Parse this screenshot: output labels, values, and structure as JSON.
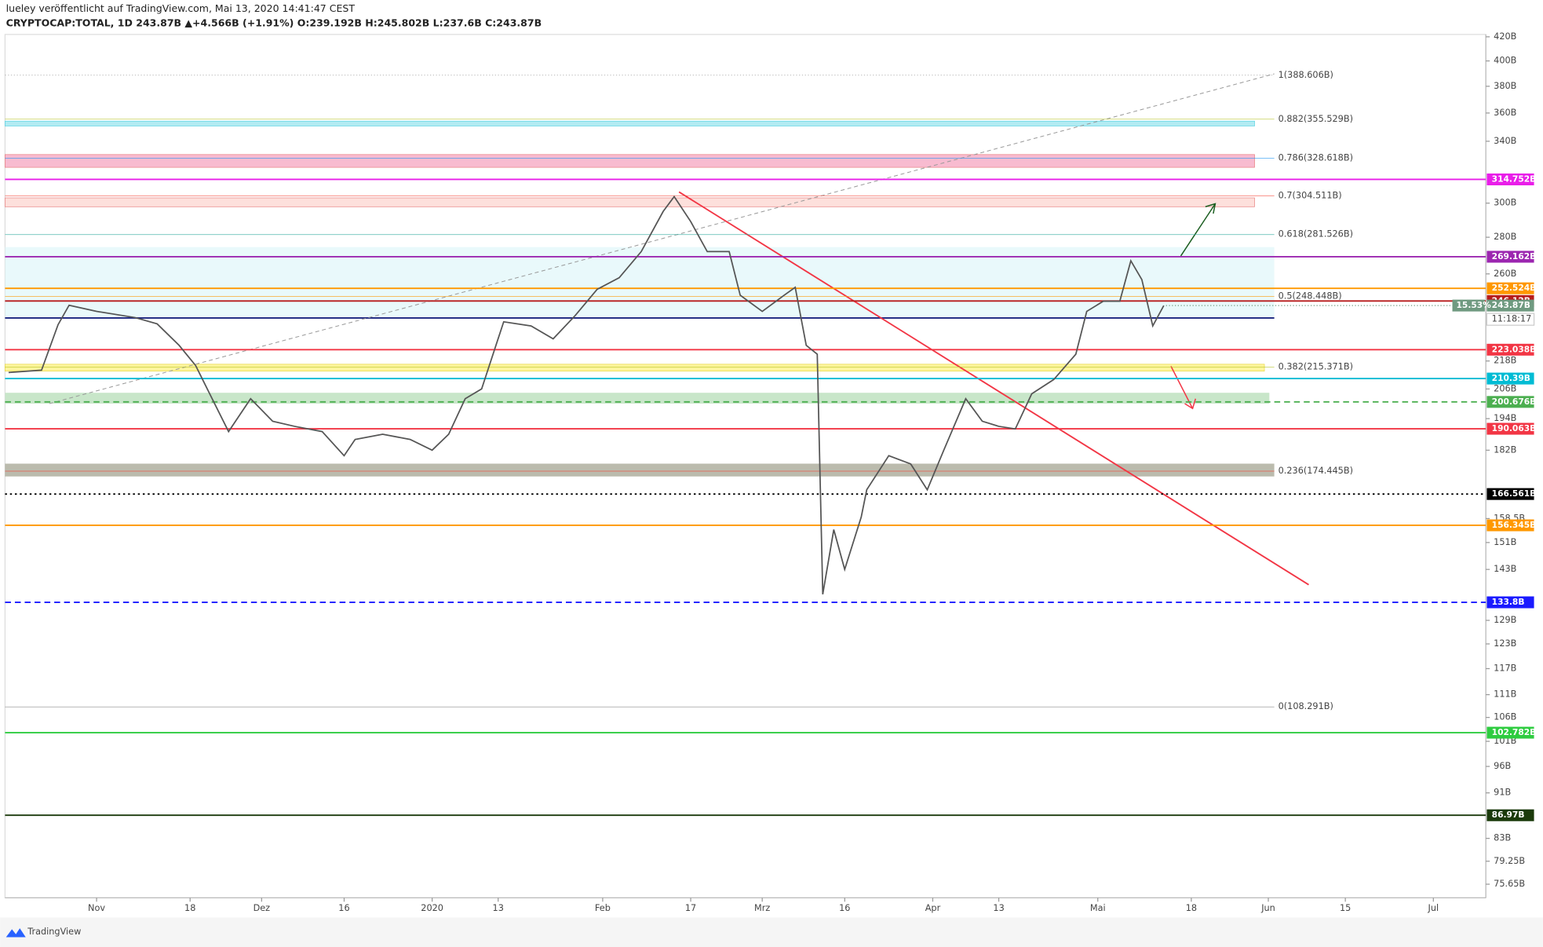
{
  "header": {
    "author_line": "lueley veröffentlicht auf TradingView.com, Mai 13, 2020 14:41:47 CEST",
    "symbol_line": "CRYPTOCAP:TOTAL, 1D 243.87B ▲+4.566B (+1.91%) O:239.192B H:245.802B L:237.6B C:243.87B"
  },
  "footer": {
    "brand": "TradingView"
  },
  "chart_data": {
    "type": "line",
    "log_scale": true,
    "color": "#555555",
    "x": [
      "2019-10-16",
      "2019-10-22",
      "2019-10-25",
      "2019-10-27",
      "2019-11-01",
      "2019-11-08",
      "2019-11-12",
      "2019-11-16",
      "2019-11-19",
      "2019-11-22",
      "2019-11-25",
      "2019-11-29",
      "2019-12-03",
      "2019-12-07",
      "2019-12-12",
      "2019-12-16",
      "2019-12-18",
      "2019-12-23",
      "2019-12-28",
      "2020-01-01",
      "2020-01-04",
      "2020-01-07",
      "2020-01-10",
      "2020-01-14",
      "2020-01-19",
      "2020-01-23",
      "2020-01-27",
      "2020-01-31",
      "2020-02-04",
      "2020-02-08",
      "2020-02-12",
      "2020-02-14",
      "2020-02-17",
      "2020-02-20",
      "2020-02-24",
      "2020-02-26",
      "2020-03-01",
      "2020-03-05",
      "2020-03-07",
      "2020-03-09",
      "2020-03-11",
      "2020-03-12",
      "2020-03-14",
      "2020-03-16",
      "2020-03-19",
      "2020-03-20",
      "2020-03-24",
      "2020-03-28",
      "2020-03-31",
      "2020-04-03",
      "2020-04-07",
      "2020-04-10",
      "2020-04-13",
      "2020-04-16",
      "2020-04-19",
      "2020-04-23",
      "2020-04-27",
      "2020-04-29",
      "2020-05-02",
      "2020-05-05",
      "2020-05-07",
      "2020-05-09",
      "2020-05-11",
      "2020-05-13"
    ],
    "values": [
      213,
      214,
      234.6,
      244,
      241,
      238,
      235,
      225,
      216,
      202,
      189,
      202,
      193,
      191,
      189,
      180,
      186,
      188,
      186,
      182,
      188,
      202,
      206,
      236,
      234,
      228,
      239,
      252,
      258,
      272,
      295,
      304,
      289,
      272,
      272,
      249,
      241,
      249,
      253,
      225,
      221,
      136,
      155,
      143,
      159,
      168,
      180,
      177,
      168,
      182,
      202,
      193,
      191,
      190,
      204,
      210,
      221,
      241,
      246,
      246,
      267,
      257,
      234,
      243.87
    ],
    "xlim": [
      "2019-10-15",
      "2020-07-10"
    ],
    "xticks": [
      {
        "value": "2019-11-01",
        "label": "Nov"
      },
      {
        "value": "2019-11-18",
        "label": "18"
      },
      {
        "value": "2019-12-01",
        "label": "Dez"
      },
      {
        "value": "2019-12-16",
        "label": "16"
      },
      {
        "value": "2020-01-01",
        "label": "2020"
      },
      {
        "value": "2020-01-13",
        "label": "13"
      },
      {
        "value": "2020-02-01",
        "label": "Feb"
      },
      {
        "value": "2020-02-17",
        "label": "17"
      },
      {
        "value": "2020-03-01",
        "label": "Mrz"
      },
      {
        "value": "2020-03-16",
        "label": "16"
      },
      {
        "value": "2020-04-01",
        "label": "Apr"
      },
      {
        "value": "2020-04-13",
        "label": "13"
      },
      {
        "value": "2020-05-01",
        "label": "Mai"
      },
      {
        "value": "2020-05-18",
        "label": "18"
      },
      {
        "value": "2020-06-01",
        "label": "Jun"
      },
      {
        "value": "2020-06-15",
        "label": "15"
      },
      {
        "value": "2020-07-01",
        "label": "Jul"
      }
    ],
    "ylim": [
      73.6,
      422
    ],
    "yticks": [
      {
        "value": 420,
        "label": "420B"
      },
      {
        "value": 400,
        "label": "400B"
      },
      {
        "value": 380,
        "label": "380B"
      },
      {
        "value": 360,
        "label": "360B"
      },
      {
        "value": 340,
        "label": "340B"
      },
      {
        "value": 300,
        "label": "300B"
      },
      {
        "value": 280,
        "label": "280B"
      },
      {
        "value": 260,
        "label": "260B"
      },
      {
        "value": 218,
        "label": "218B"
      },
      {
        "value": 206,
        "label": "206B"
      },
      {
        "value": 194,
        "label": "194B"
      },
      {
        "value": 182,
        "label": "182B"
      },
      {
        "value": 158.5,
        "label": "158.5B"
      },
      {
        "value": 151,
        "label": "151B"
      },
      {
        "value": 143,
        "label": "143B"
      },
      {
        "value": 129,
        "label": "129B"
      },
      {
        "value": 123,
        "label": "123B"
      },
      {
        "value": 117,
        "label": "117B"
      },
      {
        "value": 111,
        "label": "111B"
      },
      {
        "value": 106,
        "label": "106B"
      },
      {
        "value": 101,
        "label": "101B"
      },
      {
        "value": 96,
        "label": "96B"
      },
      {
        "value": 91,
        "label": "91B"
      },
      {
        "value": 83,
        "label": "83B"
      },
      {
        "value": 79.25,
        "label": "79.25B"
      },
      {
        "value": 75.65,
        "label": "75.65B"
      }
    ],
    "levels": [
      {
        "value": 314.752,
        "label": "314.752B",
        "color": "#e91ee9",
        "style": "solid"
      },
      {
        "value": 269.162,
        "label": "269.162B",
        "color": "#9c27b0",
        "style": "solid"
      },
      {
        "value": 252.524,
        "label": "252.524B",
        "color": "#ff9800",
        "style": "solid"
      },
      {
        "value": 246.12,
        "label": "246.12B",
        "color": "#b71c1c",
        "style": "solid"
      },
      {
        "value": 223.038,
        "label": "223.038B",
        "color": "#f23645",
        "style": "solid"
      },
      {
        "value": 210.39,
        "label": "210.39B",
        "color": "#00bcd4",
        "style": "solid"
      },
      {
        "value": 200.676,
        "label": "200.676B",
        "color": "#4caf50",
        "style": "dashed"
      },
      {
        "value": 190.063,
        "label": "190.063B",
        "color": "#f23645",
        "style": "solid"
      },
      {
        "value": 166.561,
        "label": "166.561B",
        "color": "#000000",
        "style": "dotted"
      },
      {
        "value": 156.345,
        "label": "156.345B",
        "color": "#ff9800",
        "style": "solid"
      },
      {
        "value": 133.8,
        "label": "133.8B",
        "color": "#1a1aff",
        "style": "dashed"
      },
      {
        "value": 102.782,
        "label": "102.782B",
        "color": "#2ecc40",
        "style": "solid"
      },
      {
        "value": 86.97,
        "label": "86.97B",
        "color": "#1b3a0b",
        "style": "solid"
      }
    ],
    "price_badge": {
      "value": 243.87,
      "label": "243.87B",
      "color": "#6f9a80"
    },
    "change_badge": "15.53%",
    "countdown": "11:18:17",
    "fib": {
      "levels": [
        388.606,
        355.529,
        328.618,
        304.511,
        281.526,
        248.448,
        215.371,
        174.445,
        108.291
      ],
      "value_labels": [
        "1(388.606B)",
        "0.882(355.529B)",
        "0.786(328.618B)",
        "0.7(304.511B)",
        "0.618(281.526B)",
        "0.5(248.448B)",
        "0.382(215.371B)",
        "0.236(174.445B)",
        "0(108.291B)"
      ],
      "colors": [
        "#888888",
        "#b5c42a",
        "#2196f3",
        "#f44336",
        "#26a69a",
        "#ff9800",
        "#b5c42a",
        "#f44336",
        "#888888"
      ]
    }
  }
}
